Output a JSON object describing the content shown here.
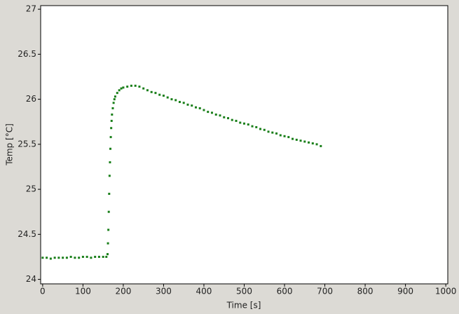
{
  "chart_data": {
    "type": "scatter",
    "x_label": "Time [s]",
    "y_label": "Temp [°C]",
    "xlim": [
      -5,
      1005
    ],
    "ylim": [
      23.95,
      27.04
    ],
    "xticks": [
      0,
      100,
      200,
      300,
      400,
      500,
      600,
      700,
      800,
      900,
      1000
    ],
    "yticks": [
      24,
      24.5,
      25,
      25.5,
      26,
      26.5,
      27
    ],
    "grid": false,
    "series": [
      {
        "color": "#1a7f1a",
        "x": [
          0,
          10,
          20,
          30,
          40,
          50,
          60,
          70,
          80,
          90,
          100,
          110,
          120,
          130,
          140,
          150,
          158,
          161,
          162,
          163,
          164,
          165,
          166,
          167,
          168,
          169,
          170,
          171,
          172,
          174,
          176,
          178,
          180,
          185,
          190,
          195,
          200,
          210,
          220,
          230,
          240,
          250,
          260,
          270,
          280,
          290,
          300,
          310,
          320,
          330,
          340,
          350,
          360,
          370,
          380,
          390,
          400,
          410,
          420,
          430,
          440,
          450,
          460,
          470,
          480,
          490,
          500,
          510,
          520,
          530,
          540,
          550,
          560,
          570,
          580,
          590,
          600,
          610,
          620,
          630,
          640,
          650,
          660,
          670,
          680,
          690
        ],
        "values": [
          24.24,
          24.24,
          24.23,
          24.24,
          24.24,
          24.24,
          24.24,
          24.25,
          24.24,
          24.24,
          24.25,
          24.25,
          24.24,
          24.25,
          24.25,
          24.25,
          24.25,
          24.28,
          24.4,
          24.55,
          24.75,
          24.95,
          25.15,
          25.3,
          25.45,
          25.58,
          25.68,
          25.76,
          25.83,
          25.9,
          25.96,
          26.0,
          26.03,
          26.07,
          26.1,
          26.12,
          26.13,
          26.14,
          26.15,
          26.15,
          26.14,
          26.12,
          26.1,
          26.08,
          26.07,
          26.05,
          26.04,
          26.02,
          26.0,
          25.99,
          25.97,
          25.96,
          25.94,
          25.93,
          25.91,
          25.9,
          25.88,
          25.86,
          25.85,
          25.83,
          25.82,
          25.8,
          25.79,
          25.77,
          25.76,
          25.74,
          25.73,
          25.72,
          25.7,
          25.69,
          25.67,
          25.66,
          25.64,
          25.63,
          25.62,
          25.6,
          25.59,
          25.58,
          25.56,
          25.55,
          25.54,
          25.53,
          25.52,
          25.51,
          25.5,
          25.48
        ]
      }
    ]
  }
}
